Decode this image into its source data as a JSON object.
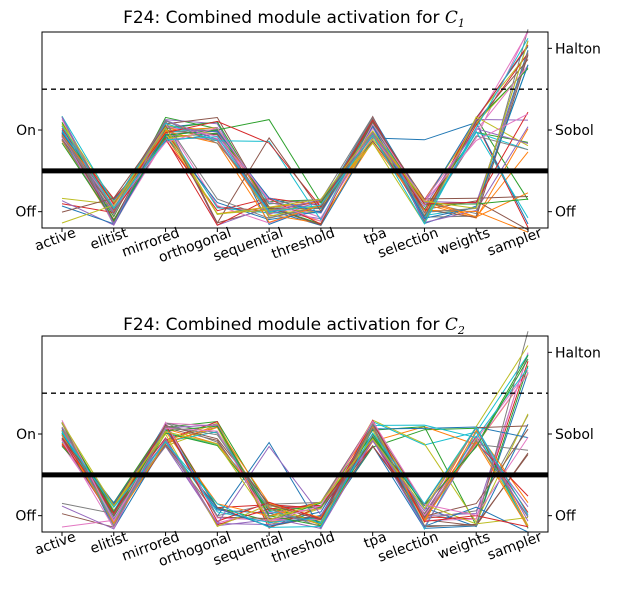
{
  "chart_data": [
    {
      "type": "line",
      "subtype": "parallel-coordinates",
      "title_prefix": "F24: Combined module activation for ",
      "title_var": "C",
      "title_sub": "1",
      "categories": [
        "active",
        "elitist",
        "mirrored",
        "orthogonal",
        "sequential",
        "threshold",
        "tpa",
        "selection",
        "weights",
        "sampler"
      ],
      "left_ticks": [
        {
          "label": "On",
          "value": 1
        },
        {
          "label": "Off",
          "value": 0
        }
      ],
      "right_ticks": [
        {
          "label": "Halton",
          "value": 2
        },
        {
          "label": "Sobol",
          "value": 1
        },
        {
          "label": "Off",
          "value": 0
        }
      ],
      "thresholds": [
        {
          "value": 0.5,
          "style": "solid"
        },
        {
          "value": 1.5,
          "style": "dashed"
        }
      ],
      "ylim": [
        -0.2,
        2.2
      ],
      "n_lines": 40,
      "grid": false,
      "legend": "none"
    },
    {
      "type": "line",
      "subtype": "parallel-coordinates",
      "title_prefix": "F24: Combined module activation for ",
      "title_var": "C",
      "title_sub": "2",
      "categories": [
        "active",
        "elitist",
        "mirrored",
        "orthogonal",
        "sequential",
        "threshold",
        "tpa",
        "selection",
        "weights",
        "sampler"
      ],
      "left_ticks": [
        {
          "label": "On",
          "value": 1
        },
        {
          "label": "Off",
          "value": 0
        }
      ],
      "right_ticks": [
        {
          "label": "Halton",
          "value": 2
        },
        {
          "label": "Sobol",
          "value": 1
        },
        {
          "label": "Off",
          "value": 0
        }
      ],
      "thresholds": [
        {
          "value": 0.5,
          "style": "solid"
        },
        {
          "value": 1.5,
          "style": "dashed"
        }
      ],
      "ylim": [
        -0.2,
        2.2
      ],
      "n_lines": 40,
      "grid": false,
      "legend": "none"
    }
  ],
  "palette": [
    "#1f77b4",
    "#ff7f0e",
    "#2ca02c",
    "#d62728",
    "#9467bd",
    "#8c564b",
    "#e377c2",
    "#7f7f7f",
    "#bcbd22",
    "#17becf"
  ]
}
